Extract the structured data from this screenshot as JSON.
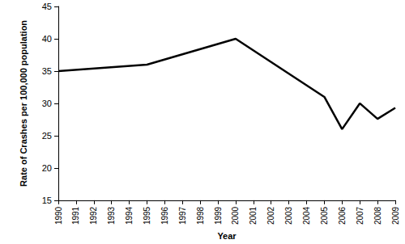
{
  "chart_data": {
    "type": "line",
    "x_label": "Year",
    "y_label": "Rate of Crashes per 100,000 population",
    "x": [
      1990,
      1995,
      2000,
      2005,
      2006,
      2007,
      2008,
      2009
    ],
    "values": [
      35,
      36,
      40,
      31,
      26,
      30,
      27.6,
      29.3
    ],
    "color": "#000000",
    "marker": "none",
    "xlim": [
      1990,
      2009
    ],
    "xticks": [
      1990,
      1991,
      1992,
      1993,
      1994,
      1995,
      1996,
      1997,
      1998,
      1999,
      2000,
      2001,
      2002,
      2003,
      2004,
      2005,
      2006,
      2007,
      2008,
      2009
    ],
    "ylim": [
      15,
      45
    ],
    "yticks": [
      15,
      20,
      25,
      30,
      35,
      40,
      45
    ],
    "grid": false
  }
}
